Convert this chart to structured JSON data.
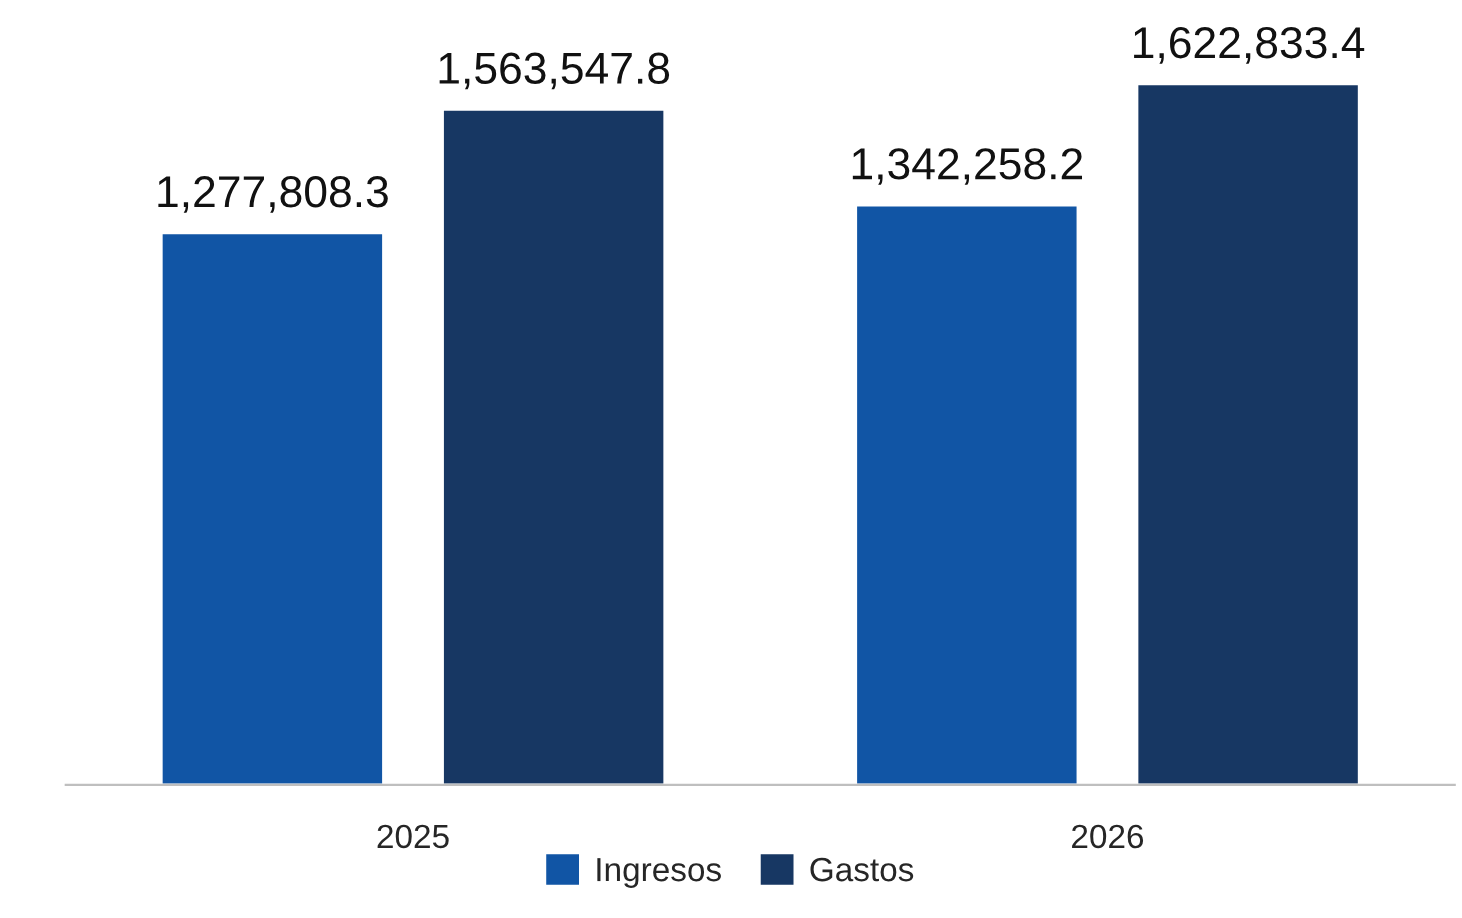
{
  "chart_data": {
    "type": "bar",
    "categories": [
      "2025",
      "2026"
    ],
    "series": [
      {
        "name": "Ingresos",
        "color": "#1155a5",
        "values": [
          1277808.3,
          1342258.2
        ],
        "value_labels": [
          "1,277,808.3",
          "1,342,258.2"
        ]
      },
      {
        "name": "Gastos",
        "color": "#173763",
        "values": [
          1563547.8,
          1622833.4
        ],
        "value_labels": [
          "1,563,547.8",
          "1,622,833.4"
        ]
      }
    ],
    "legend": "bottom",
    "grid": false
  }
}
